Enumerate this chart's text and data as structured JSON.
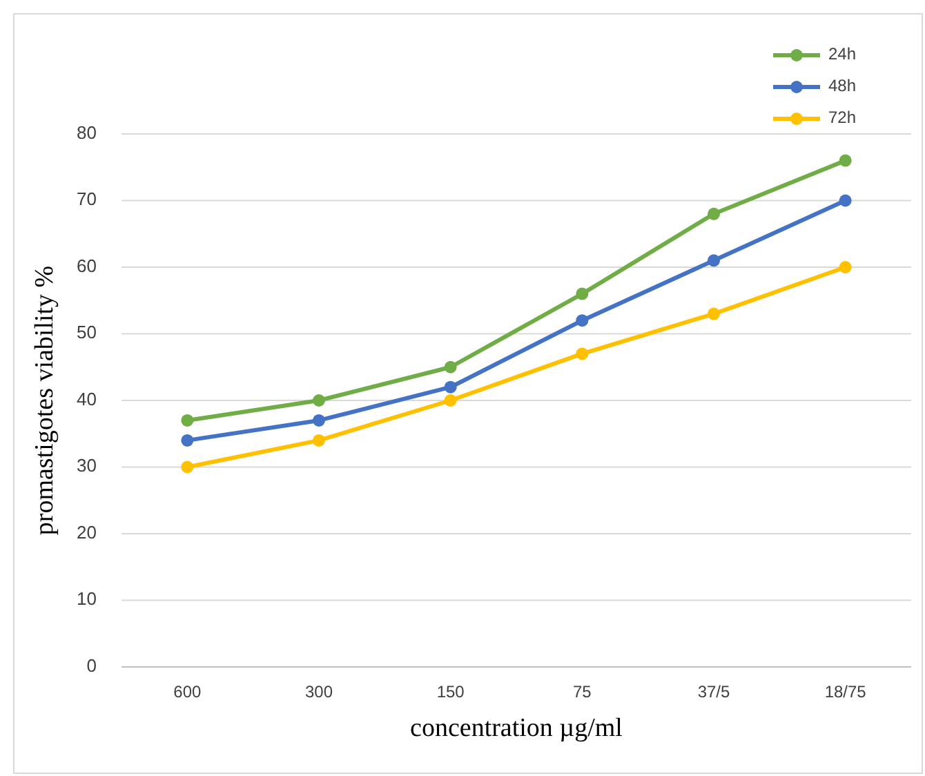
{
  "chart_data": {
    "type": "line",
    "xlabel": "concentration µg/ml",
    "ylabel": "promastigotes  viability %",
    "categories": [
      "600",
      "300",
      "150",
      "75",
      "37/5",
      "18/75"
    ],
    "series": [
      {
        "name": "24h",
        "color": "#70ad47",
        "values": [
          37,
          40,
          45,
          56,
          68,
          76
        ]
      },
      {
        "name": "48h",
        "color": "#4472c4",
        "values": [
          34,
          37,
          42,
          52,
          61,
          70
        ]
      },
      {
        "name": "72h",
        "color": "#ffc000",
        "values": [
          30,
          34,
          40,
          47,
          53,
          60
        ]
      }
    ],
    "ylim": [
      0,
      80
    ],
    "yticks": [
      0,
      10,
      20,
      30,
      40,
      50,
      60,
      70,
      80
    ],
    "grid": "y",
    "legend": "top right",
    "marker": "circle",
    "line_style": "solid"
  }
}
